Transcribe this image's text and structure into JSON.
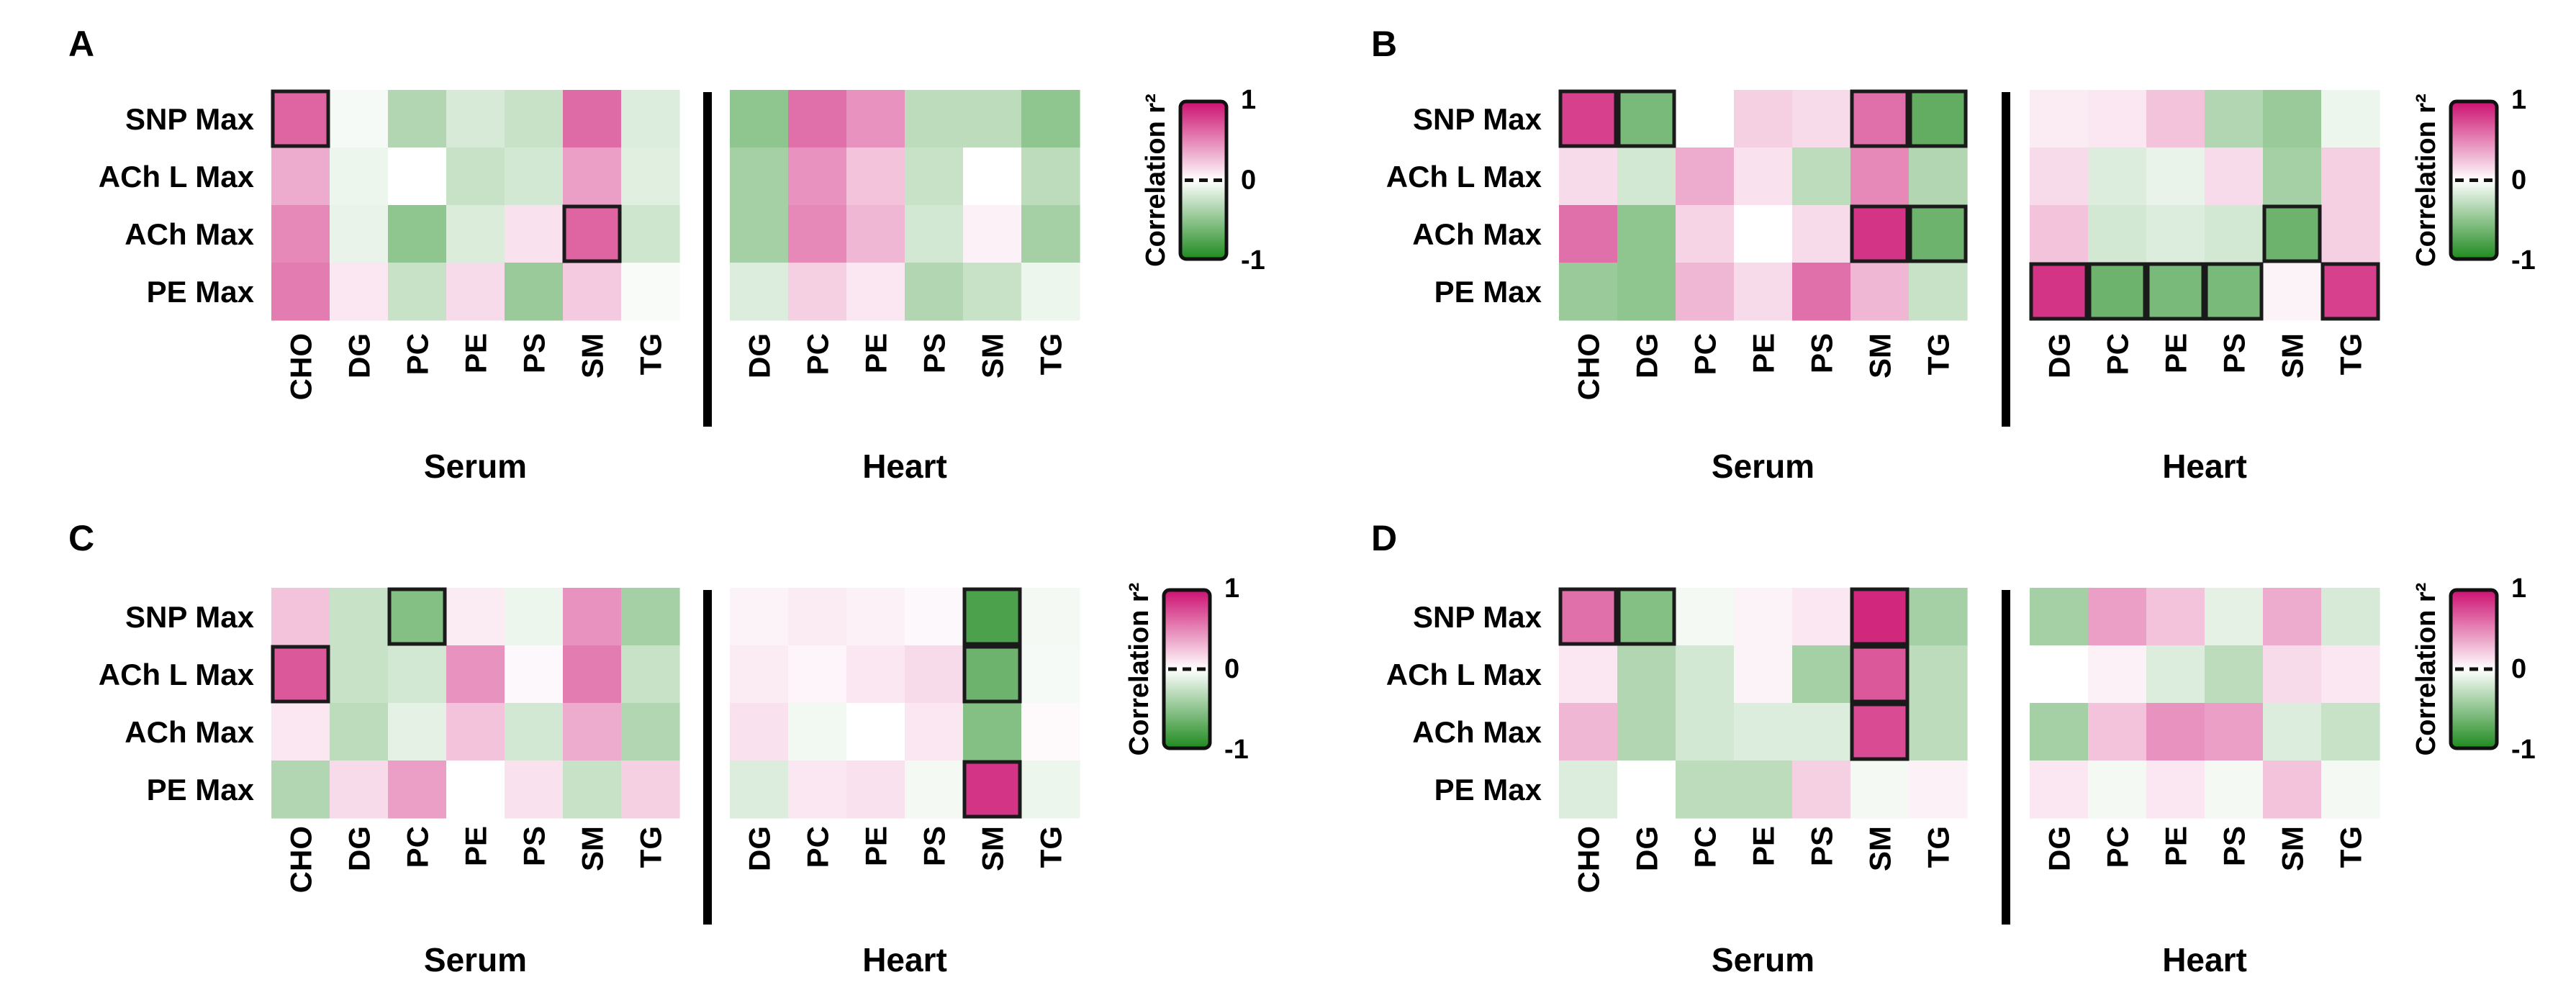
{
  "chart_data": [
    {
      "type": "heatmap",
      "panel": "A",
      "rows": [
        "SNP Max",
        "ACh L Max",
        "ACh Max",
        "PE Max"
      ],
      "serum": {
        "title": "Serum",
        "columns": [
          "CHO",
          "DG",
          "PC",
          "PE",
          "PS",
          "SM",
          "TG"
        ],
        "values": [
          [
            0.65,
            -0.04,
            -0.35,
            -0.18,
            -0.25,
            0.62,
            -0.15
          ],
          [
            0.35,
            -0.08,
            0.0,
            -0.25,
            -0.2,
            0.4,
            -0.14
          ],
          [
            0.5,
            -0.1,
            -0.5,
            -0.16,
            0.12,
            0.65,
            -0.22
          ],
          [
            0.55,
            0.1,
            -0.25,
            0.15,
            -0.45,
            0.22,
            -0.03
          ]
        ],
        "highlighted": [
          [
            0,
            0
          ],
          [
            2,
            5
          ]
        ]
      },
      "heart": {
        "title": "Heart",
        "columns": [
          "DG",
          "PC",
          "PE",
          "PS",
          "SM",
          "TG"
        ],
        "values": [
          [
            -0.5,
            0.6,
            0.45,
            -0.3,
            -0.3,
            -0.5
          ],
          [
            -0.4,
            0.45,
            0.25,
            -0.25,
            0.0,
            -0.3
          ],
          [
            -0.4,
            0.5,
            0.3,
            -0.2,
            0.06,
            -0.4
          ],
          [
            -0.15,
            0.2,
            0.1,
            -0.35,
            -0.25,
            -0.08
          ]
        ],
        "highlighted": []
      },
      "colorbar": {
        "title": "Correlation r²",
        "ticks": [
          "1",
          "0",
          "-1"
        ],
        "range": [
          -1,
          1
        ]
      }
    },
    {
      "type": "heatmap",
      "panel": "B",
      "rows": [
        "SNP Max",
        "ACh L Max",
        "ACh Max",
        "PE Max"
      ],
      "serum": {
        "title": "Serum",
        "columns": [
          "CHO",
          "DG",
          "PC",
          "PE",
          "PS",
          "SM",
          "TG"
        ],
        "values": [
          [
            0.8,
            -0.6,
            0.0,
            0.2,
            0.15,
            0.6,
            -0.7
          ],
          [
            0.15,
            -0.2,
            0.35,
            0.12,
            -0.3,
            0.5,
            -0.35
          ],
          [
            0.6,
            -0.5,
            0.18,
            0.0,
            0.15,
            0.85,
            -0.65
          ],
          [
            -0.45,
            -0.5,
            0.3,
            0.15,
            0.6,
            0.3,
            -0.25
          ]
        ],
        "highlighted": [
          [
            0,
            0
          ],
          [
            0,
            1
          ],
          [
            0,
            5
          ],
          [
            0,
            6
          ],
          [
            2,
            5
          ],
          [
            2,
            6
          ]
        ]
      },
      "heart": {
        "title": "Heart",
        "columns": [
          "DG",
          "PC",
          "PE",
          "PS",
          "SM",
          "TG"
        ],
        "values": [
          [
            0.08,
            0.1,
            0.25,
            -0.35,
            -0.45,
            -0.08
          ],
          [
            0.15,
            -0.15,
            -0.1,
            0.15,
            -0.4,
            0.2
          ],
          [
            0.25,
            -0.2,
            -0.15,
            -0.2,
            -0.65,
            0.2
          ],
          [
            0.85,
            -0.65,
            -0.6,
            -0.6,
            0.05,
            0.8
          ]
        ],
        "highlighted": [
          [
            2,
            4
          ],
          [
            3,
            0
          ],
          [
            3,
            1
          ],
          [
            3,
            2
          ],
          [
            3,
            3
          ],
          [
            3,
            5
          ]
        ]
      },
      "colorbar": {
        "title": "Correlation r²",
        "ticks": [
          "1",
          "0",
          "-1"
        ],
        "range": [
          -1,
          1
        ]
      }
    },
    {
      "type": "heatmap",
      "panel": "C",
      "rows": [
        "SNP Max",
        "ACh L Max",
        "ACh Max",
        "PE Max"
      ],
      "serum": {
        "title": "Serum",
        "columns": [
          "CHO",
          "DG",
          "PC",
          "PE",
          "PS",
          "SM",
          "TG"
        ],
        "values": [
          [
            0.25,
            -0.25,
            -0.55,
            0.08,
            -0.08,
            0.45,
            -0.4
          ],
          [
            0.7,
            -0.25,
            -0.2,
            0.45,
            0.03,
            0.55,
            -0.25
          ],
          [
            0.1,
            -0.3,
            -0.12,
            0.25,
            -0.2,
            0.35,
            -0.35
          ],
          [
            -0.35,
            0.15,
            0.4,
            0.0,
            0.12,
            -0.25,
            0.2
          ]
        ],
        "highlighted": [
          [
            0,
            2
          ],
          [
            1,
            0
          ]
        ]
      },
      "heart": {
        "title": "Heart",
        "columns": [
          "DG",
          "PC",
          "PE",
          "PS",
          "SM",
          "TG"
        ],
        "values": [
          [
            0.05,
            0.08,
            0.06,
            0.03,
            -0.8,
            -0.05
          ],
          [
            0.08,
            0.04,
            0.1,
            0.15,
            -0.65,
            -0.04
          ],
          [
            0.12,
            -0.06,
            0.0,
            0.1,
            -0.55,
            0.02
          ],
          [
            -0.15,
            0.1,
            0.12,
            -0.05,
            0.85,
            -0.08
          ]
        ],
        "highlighted": [
          [
            0,
            4
          ],
          [
            1,
            4
          ],
          [
            3,
            4
          ]
        ]
      },
      "colorbar": {
        "title": "Correlation r²",
        "ticks": [
          "1",
          "0",
          "-1"
        ],
        "range": [
          -1,
          1
        ]
      }
    },
    {
      "type": "heatmap",
      "panel": "D",
      "rows": [
        "SNP Max",
        "ACh L Max",
        "ACh Max",
        "PE Max"
      ],
      "serum": {
        "title": "Serum",
        "columns": [
          "CHO",
          "DG",
          "PC",
          "PE",
          "PS",
          "SM",
          "TG"
        ],
        "values": [
          [
            0.6,
            -0.55,
            -0.05,
            0.05,
            0.1,
            0.9,
            -0.4
          ],
          [
            0.1,
            -0.35,
            -0.2,
            0.05,
            -0.4,
            0.7,
            -0.3
          ],
          [
            0.3,
            -0.35,
            -0.2,
            -0.15,
            -0.15,
            0.75,
            -0.3
          ],
          [
            -0.15,
            0.0,
            -0.3,
            -0.3,
            0.2,
            -0.05,
            0.06
          ]
        ],
        "highlighted": [
          [
            0,
            0
          ],
          [
            0,
            1
          ],
          [
            0,
            5
          ],
          [
            1,
            5
          ],
          [
            2,
            5
          ]
        ]
      },
      "heart": {
        "title": "Heart",
        "columns": [
          "DG",
          "PC",
          "PE",
          "PS",
          "SM",
          "TG"
        ],
        "values": [
          [
            -0.4,
            0.4,
            0.25,
            -0.12,
            0.35,
            -0.18
          ],
          [
            0.0,
            0.06,
            -0.15,
            -0.3,
            0.15,
            0.1
          ],
          [
            -0.4,
            0.25,
            0.45,
            0.4,
            -0.15,
            -0.25
          ],
          [
            0.1,
            -0.05,
            0.1,
            -0.05,
            0.25,
            -0.05
          ]
        ],
        "highlighted": []
      },
      "colorbar": {
        "title": "Correlation r²",
        "ticks": [
          "1",
          "0",
          "-1"
        ],
        "range": [
          -1,
          1
        ]
      }
    }
  ],
  "colors": {
    "positive": "#cc1070",
    "neutral": "#ffffff",
    "negative": "#1f8a1f",
    "highlight_border": "#1a1a1a",
    "divider": "#000000"
  }
}
